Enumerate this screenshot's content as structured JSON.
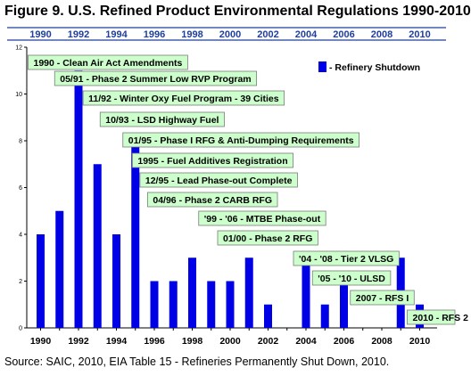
{
  "figure": {
    "title": "Figure 9. U.S. Refined Product Environmental Regulations 1990-2010",
    "source": "Source: SAIC, 2010, EIA Table 15 - Refineries Permanently Shut Down, 2010."
  },
  "colors": {
    "bar": "#0000e6",
    "annotation_fill": "#ccffcc",
    "annotation_border": "#7a7a7a",
    "top_axis_text": "#1f3f9e",
    "top_axis_line": "#1f3f9e"
  },
  "chart_data": {
    "type": "bar",
    "categories": [
      1990,
      1991,
      1992,
      1993,
      1994,
      1995,
      1996,
      1997,
      1998,
      1999,
      2000,
      2001,
      2002,
      2003,
      2004,
      2005,
      2006,
      2007,
      2008,
      2009,
      2010
    ],
    "series": [
      {
        "name": "- Refinery Shutdown",
        "values": [
          4,
          5,
          11,
          7,
          4,
          8,
          2,
          2,
          3,
          2,
          2,
          3,
          1,
          0,
          3,
          1,
          2,
          0,
          0,
          3,
          1
        ]
      }
    ],
    "ylim": [
      0,
      12
    ],
    "yticks": [
      0,
      2,
      4,
      6,
      8,
      10,
      12
    ],
    "xtick_labels": [
      "1990",
      "1992",
      "1994",
      "1996",
      "1998",
      "2000",
      "2002",
      "2004",
      "2006",
      "2008",
      "2010"
    ],
    "top_axis_labels": [
      "1990",
      "1992",
      "1994",
      "1996",
      "1998",
      "2000",
      "2002",
      "2004",
      "2006",
      "2008",
      "2010"
    ],
    "legend": {
      "label": "- Refinery Shutdown",
      "position": "top-right"
    },
    "grid": false,
    "annotations": [
      {
        "year": 1990.0,
        "text": "1990 - Clean Air Act Amendments"
      },
      {
        "year": 1991.4,
        "text": "05/91 - Phase 2 Summer Low RVP Program"
      },
      {
        "year": 1992.9,
        "text": "11/92 - Winter Oxy Fuel Program - 39 Cities"
      },
      {
        "year": 1993.8,
        "text": "10/93 - LSD Highway Fuel"
      },
      {
        "year": 1995.0,
        "text": "01/95 - Phase I RFG & Anti-Dumping Requirements"
      },
      {
        "year": 1995.5,
        "text": "1995 - Fuel Additives Registration"
      },
      {
        "year": 1995.9,
        "text": "12/95 - Lead Phase-out Complete"
      },
      {
        "year": 1996.3,
        "text": "04/96 - Phase 2 CARB RFG"
      },
      {
        "year": 1999.0,
        "text": "'99 - '06 - MTBE Phase-out"
      },
      {
        "year": 2000.0,
        "text": "01/00 - Phase 2 RFG"
      },
      {
        "year": 2004.0,
        "text": "'04 - '08 - Tier 2 VLSG"
      },
      {
        "year": 2005.0,
        "text": "'05 - '10 - ULSD"
      },
      {
        "year": 2007.0,
        "text": "2007 - RFS I"
      },
      {
        "year": 2010.0,
        "text": "2010 - RFS 2"
      }
    ]
  }
}
